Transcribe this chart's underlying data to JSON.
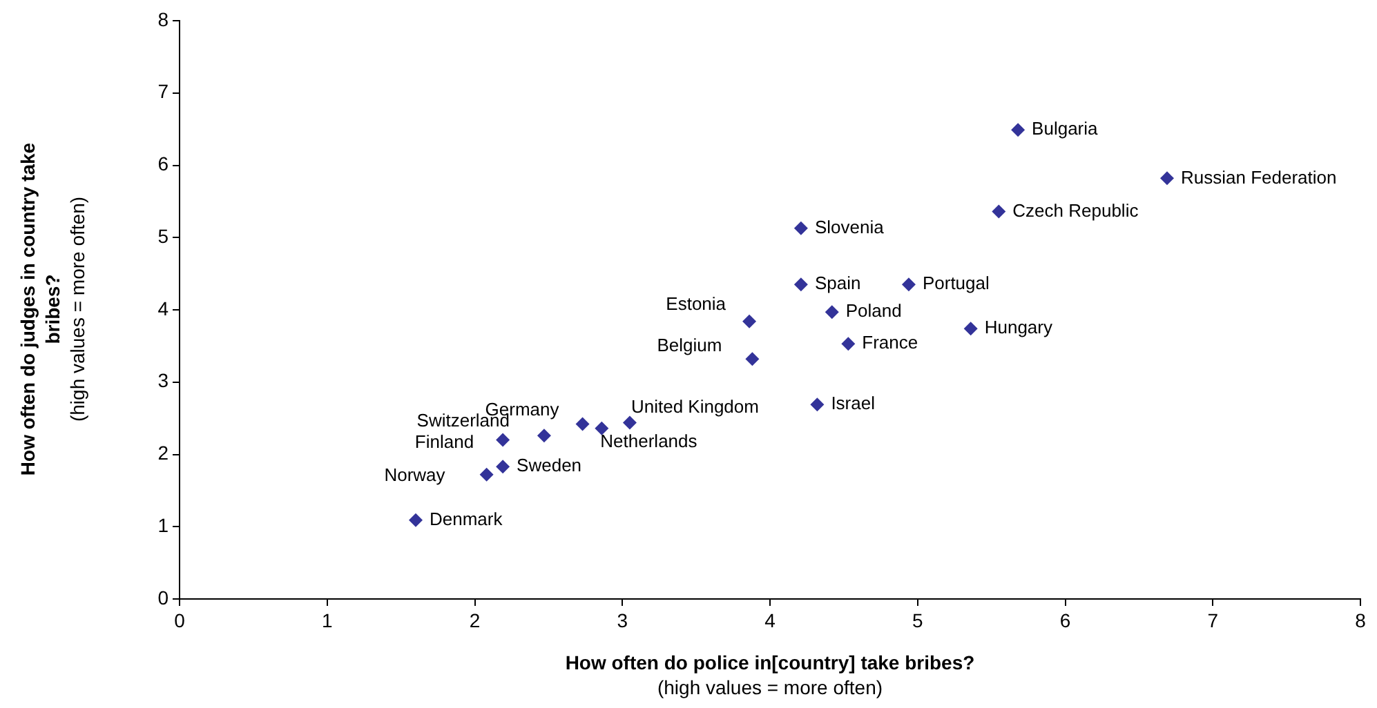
{
  "chart_data": {
    "type": "scatter",
    "xlabel": "How often do police in[country] take bribes?\n(high values = more often)",
    "ylabel": "How often do judges in country take bribes?\n(high values = more often)",
    "series": [
      {
        "color": "#333399",
        "x": [
          5.68,
          6.69,
          5.55,
          4.21,
          4.21,
          4.94,
          4.42,
          3.86,
          5.36,
          4.53,
          3.88,
          4.32,
          2.73,
          2.86,
          3.05,
          2.47,
          2.19,
          2.19,
          2.08,
          1.6
        ],
        "values": [
          6.49,
          5.82,
          5.36,
          5.13,
          4.35,
          4.35,
          3.97,
          3.84,
          3.74,
          3.53,
          3.32,
          2.69,
          2.42,
          2.36,
          2.44,
          2.26,
          2.2,
          1.83,
          1.72,
          1.09
        ]
      }
    ],
    "annotations": [
      {
        "text": "Bulgaria",
        "x": 5.68,
        "y": 6.49
      },
      {
        "text": "Russian Federation",
        "x": 6.69,
        "y": 5.82
      },
      {
        "text": "Czech Republic",
        "x": 5.55,
        "y": 5.36
      },
      {
        "text": "Slovenia",
        "x": 4.21,
        "y": 5.13
      },
      {
        "text": "Spain",
        "x": 4.21,
        "y": 4.35
      },
      {
        "text": "Portugal",
        "x": 4.94,
        "y": 4.35
      },
      {
        "text": "Poland",
        "x": 4.42,
        "y": 3.97
      },
      {
        "text": "Estonia",
        "x": 3.86,
        "y": 3.84
      },
      {
        "text": "Hungary",
        "x": 5.36,
        "y": 3.74
      },
      {
        "text": "France",
        "x": 4.53,
        "y": 3.53
      },
      {
        "text": "Belgium",
        "x": 3.88,
        "y": 3.32
      },
      {
        "text": "Israel",
        "x": 4.32,
        "y": 2.69
      },
      {
        "text": "Germany",
        "x": 2.73,
        "y": 2.42
      },
      {
        "text": "Netherlands",
        "x": 2.86,
        "y": 2.36
      },
      {
        "text": "United Kingdom",
        "x": 3.05,
        "y": 2.44
      },
      {
        "text": "Switzerland",
        "x": 2.47,
        "y": 2.26
      },
      {
        "text": "Finland",
        "x": 2.19,
        "y": 2.2
      },
      {
        "text": "Sweden",
        "x": 2.19,
        "y": 1.83
      },
      {
        "text": "Norway",
        "x": 2.08,
        "y": 1.72
      },
      {
        "text": "Denmark",
        "x": 1.6,
        "y": 1.09
      }
    ],
    "xlim": [
      0,
      8
    ],
    "xticks": [
      0,
      1,
      2,
      3,
      4,
      5,
      6,
      7,
      8
    ],
    "ylim": [
      0,
      8
    ],
    "yticks": [
      0,
      1,
      2,
      3,
      4,
      5,
      6,
      7,
      8
    ],
    "grid": false,
    "legend": false,
    "marker": "diamond"
  }
}
